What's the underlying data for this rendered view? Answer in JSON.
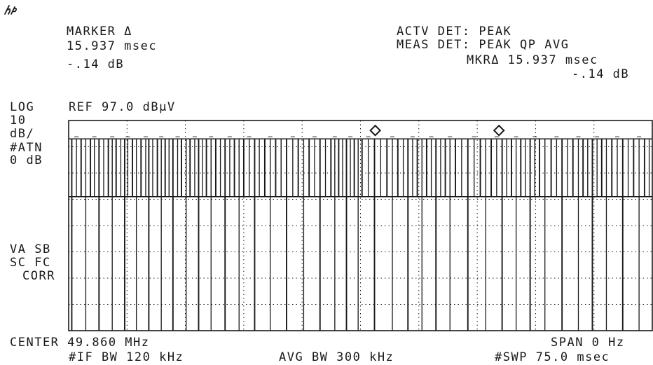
{
  "header": {
    "marker_label": "MARKER Δ",
    "marker_time": "15.937 msec",
    "marker_level": "-.14 dB",
    "actv_det": "ACTV DET: PEAK",
    "meas_det": "MEAS DET: PEAK QP AVG",
    "mkr_readout_time": "MKRΔ 15.937 msec",
    "mkr_readout_level": "-.14 dB",
    "logo_text": "hp"
  },
  "left_panel": {
    "scale_mode": "LOG",
    "scale_value": "10",
    "scale_unit": "dB/",
    "attenuation_label": "#ATN",
    "attenuation_value": "0 dB",
    "va_sb": "VA SB",
    "sc_fc": "SC FC",
    "corr": "CORR"
  },
  "reference": "REF 97.0 dBµV",
  "footer": {
    "center": "CENTER 49.860 MHz",
    "span": "SPAN 0 Hz",
    "if_bw": "#IF BW 120 kHz",
    "avg_bw": "AVG BW 300 kHz",
    "sweep": "#SWP 75.0 msec"
  },
  "chart_data": {
    "type": "line",
    "title": "",
    "xlabel": "",
    "ylabel": "",
    "x_unit": "msec",
    "y_unit": "dBµV",
    "xlim": [
      0,
      75.0
    ],
    "ylim": [
      17.0,
      97.0
    ],
    "grid": true,
    "grid_divisions": {
      "x": 10,
      "y": 8
    },
    "trace_high_level": 90.0,
    "trace_low_level": 68.0,
    "trace_dropout_level": 17.0,
    "pulse_edges_ms": [
      0.4,
      1.0,
      1.6,
      2.2,
      2.8,
      3.3,
      3.9,
      4.5,
      5.1,
      5.6,
      6.1,
      6.7,
      7.2,
      7.6,
      8.2,
      8.7,
      9.3,
      9.9,
      10.3,
      10.8,
      11.4,
      11.9,
      12.4,
      12.9,
      13.4,
      14.0,
      14.5,
      15.1,
      15.6,
      16.2,
      16.7,
      17.2,
      17.7,
      18.3,
      18.9,
      19.5,
      20.1,
      20.7,
      21.3,
      21.9,
      22.5,
      23.2,
      23.9,
      24.5,
      25.2,
      25.9,
      26.6,
      27.3,
      28.0,
      28.8,
      29.5,
      30.2,
      30.9,
      31.6,
      32.3,
      33.0,
      33.7,
      34.2,
      34.7,
      35.2,
      35.7,
      36.2,
      36.7,
      37.2,
      37.7,
      38.5,
      39.3,
      40.1,
      40.9,
      41.6,
      42.3,
      43.0,
      43.6,
      44.2,
      44.8,
      45.4,
      46.0,
      46.6,
      47.2,
      47.8,
      48.4,
      49.0,
      49.7,
      50.5,
      51.3,
      52.1,
      52.9,
      53.6,
      54.3,
      55.0,
      55.7,
      56.3,
      56.9,
      57.5,
      58.1,
      58.7,
      59.3,
      59.9,
      60.5,
      61.2,
      62.0,
      62.7,
      63.4,
      64.1,
      64.8,
      65.5,
      66.1,
      66.7,
      67.3,
      67.9,
      68.5,
      69.1,
      69.8,
      70.5,
      71.2,
      71.9,
      72.6,
      73.3,
      74.0,
      74.6
    ],
    "markers": [
      {
        "x": 39.4,
        "y": 90.0,
        "shape": "diamond"
      },
      {
        "x": 55.3,
        "y": 90.0,
        "shape": "diamond"
      }
    ],
    "marker_delta": {
      "time": "15.937 msec",
      "level": "-.14 dB"
    }
  }
}
